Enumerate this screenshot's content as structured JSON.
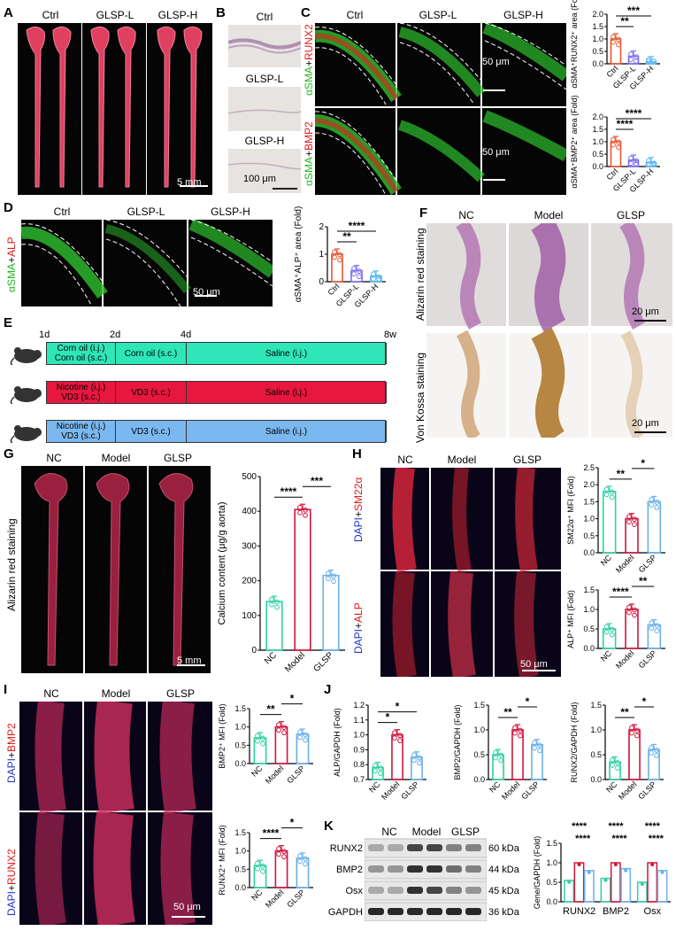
{
  "panels": {
    "A": "A",
    "B": "B",
    "C": "C",
    "D": "D",
    "E": "E",
    "F": "F",
    "G": "G",
    "H": "H",
    "I": "I",
    "J": "J",
    "K": "K"
  },
  "groups3": [
    "Ctrl",
    "GLSP-L",
    "GLSP-H"
  ],
  "groupsNC": [
    "NC",
    "Model",
    "GLSP"
  ],
  "scale": {
    "mm5": "5 mm",
    "um100": "100 μm",
    "um50": "50 μm",
    "um20": "20 μm"
  },
  "stains": {
    "c_top": [
      "αSMA",
      "+",
      "RUNX2"
    ],
    "c_bot": [
      "αSMA",
      "+",
      "BMP2"
    ],
    "d": [
      "αSMA",
      "+",
      "ALP"
    ],
    "h_top": [
      "DAPI",
      "+",
      "SM22α"
    ],
    "h_bot": [
      "DAPI",
      "+",
      "ALP"
    ],
    "i_top": [
      "DAPI",
      "+",
      "BMP2"
    ],
    "i_bot": [
      "DAPI",
      "+",
      "RUNX2"
    ],
    "alizarin": "Alizarin red staining",
    "vonkossa": "Von Kossa staining",
    "g_alizarin": "Alizarin red staining"
  },
  "timeline": {
    "days": [
      "1d",
      "2d",
      "4d",
      "8w"
    ],
    "rows": [
      {
        "seg1": "Corn oil (i.j.)\nCorn oil (s.c.)",
        "seg2": "Corn oil (s.c.)",
        "seg3": "Saline (i.j.)",
        "color": "#2ee6b8"
      },
      {
        "seg1": "Nicotine (i.j.)\nVD3 (s.c.)",
        "seg2": "VD3 (s.c.)",
        "seg3": "Saline (i.j.)",
        "color": "#e8173f"
      },
      {
        "seg1": "Nicotine (i.j.)\nVD3 (s.c.)",
        "seg2": "VD3 (s.c.)",
        "seg3": "Saline (i.j.)",
        "color": "#7bb8ef"
      }
    ]
  },
  "wb": {
    "labels": [
      "RUNX2",
      "BMP2",
      "Osx",
      "GAPDH"
    ],
    "kda": [
      "60 kDa",
      "44 kDa",
      "45 kDa",
      "36 kDa"
    ],
    "lanes": [
      "NC",
      "Model",
      "GLSP"
    ]
  },
  "colors": {
    "nc": "#2ed1a5",
    "model": "#d0153c",
    "glsp": "#6ab0ea",
    "ctrl": "#e8562f",
    "glspl": "#7a6ff0",
    "glsph": "#5ab8f0"
  },
  "chart_data": [
    {
      "id": "C1",
      "type": "bar",
      "ylabel": "αSMA⁺RUNX2⁺ area (Fold)",
      "categories": [
        "Ctrl",
        "GLSP-L",
        "GLSP-H"
      ],
      "values": [
        1.0,
        0.3,
        0.08
      ],
      "ylim": [
        0,
        2.0
      ],
      "yticks": [
        "0.0",
        "0.5",
        "1.0",
        "1.5",
        "2.0"
      ],
      "sig": [
        "**",
        "***"
      ]
    },
    {
      "id": "C2",
      "type": "bar",
      "ylabel": "αSMA⁺BMP2⁺ area (Fold)",
      "categories": [
        "Ctrl",
        "GLSP-L",
        "GLSP-H"
      ],
      "values": [
        1.0,
        0.25,
        0.15
      ],
      "ylim": [
        0,
        2.0
      ],
      "yticks": [
        "0.0",
        "0.5",
        "1.0",
        "1.5",
        "2.0"
      ],
      "sig": [
        "****",
        "****"
      ]
    },
    {
      "id": "D",
      "type": "bar",
      "ylabel": "αSMA⁺ALP⁺ area (Fold)",
      "categories": [
        "Ctrl",
        "GLSP-L",
        "GLSP-H"
      ],
      "values": [
        1.0,
        0.4,
        0.2
      ],
      "ylim": [
        0,
        2
      ],
      "yticks": [
        "0",
        "1",
        "2"
      ],
      "sig": [
        "**",
        "****"
      ]
    },
    {
      "id": "G",
      "type": "bar",
      "ylabel": "Calcium content (μg/g aorta)",
      "categories": [
        "NC",
        "Model",
        "GLSP"
      ],
      "values": [
        140,
        405,
        215
      ],
      "ylim": [
        0,
        500
      ],
      "yticks": [
        "0",
        "100",
        "200",
        "300",
        "400",
        "500"
      ],
      "sig": [
        "****",
        "***"
      ]
    },
    {
      "id": "H1",
      "type": "bar",
      "ylabel": "SM22α⁺ MFI (Fold)",
      "categories": [
        "NC",
        "Model",
        "GLSP"
      ],
      "values": [
        1.8,
        1.0,
        1.5
      ],
      "ylim": [
        0,
        2.5
      ],
      "yticks": [
        "0.0",
        "0.5",
        "1.0",
        "1.5",
        "2.0",
        "2.5"
      ],
      "sig": [
        "**",
        "*"
      ]
    },
    {
      "id": "H2",
      "type": "bar",
      "ylabel": "ALP⁺ MFI (Fold)",
      "categories": [
        "NC",
        "Model",
        "GLSP"
      ],
      "values": [
        0.5,
        1.0,
        0.6
      ],
      "ylim": [
        0,
        1.5
      ],
      "yticks": [
        "0.0",
        "0.5",
        "1.0",
        "1.5"
      ],
      "sig": [
        "****",
        "**"
      ]
    },
    {
      "id": "I1",
      "type": "bar",
      "ylabel": "BMP2⁺ MFI (Fold)",
      "categories": [
        "NC",
        "Model",
        "GLSP"
      ],
      "values": [
        0.7,
        1.0,
        0.8
      ],
      "ylim": [
        0,
        1.5
      ],
      "yticks": [
        "0.0",
        "0.5",
        "1.0",
        "1.5"
      ],
      "sig": [
        "**",
        "*"
      ]
    },
    {
      "id": "I2",
      "type": "bar",
      "ylabel": "RUNX2⁺ MFI (Fold)",
      "categories": [
        "NC",
        "Model",
        "GLSP"
      ],
      "values": [
        0.6,
        1.0,
        0.8
      ],
      "ylim": [
        0,
        1.5
      ],
      "yticks": [
        "0.0",
        "0.5",
        "1.0",
        "1.5"
      ],
      "sig": [
        "****",
        "*"
      ]
    },
    {
      "id": "J1",
      "type": "bar",
      "ylabel": "ALP/GAPDH (Fold)",
      "categories": [
        "NC",
        "Model",
        "GLSP"
      ],
      "values": [
        0.78,
        1.0,
        0.85
      ],
      "ylim": [
        0.7,
        1.2
      ],
      "yticks": [
        "0.7",
        "0.8",
        "0.9",
        "1.0",
        "1.1",
        "1.2"
      ],
      "sig": [
        "*",
        "*"
      ]
    },
    {
      "id": "J2",
      "type": "bar",
      "ylabel": "BMP2/GAPDH (Fold)",
      "categories": [
        "NC",
        "Model",
        "GLSP"
      ],
      "values": [
        0.5,
        1.0,
        0.7
      ],
      "ylim": [
        0,
        1.5
      ],
      "yticks": [
        "0.0",
        "0.5",
        "1.0",
        "1.5"
      ],
      "sig": [
        "**",
        "*"
      ]
    },
    {
      "id": "J3",
      "type": "bar",
      "ylabel": "RUNX2/GAPDH (Fold)",
      "categories": [
        "NC",
        "Model",
        "GLSP"
      ],
      "values": [
        0.35,
        1.0,
        0.6
      ],
      "ylim": [
        0,
        1.5
      ],
      "yticks": [
        "0.0",
        "0.5",
        "1.0",
        "1.5"
      ],
      "sig": [
        "**",
        "*"
      ]
    },
    {
      "id": "K",
      "type": "bar",
      "ylabel": "Gene/GAPDH (Fold)",
      "categories": [
        "RUNX2",
        "BMP2",
        "Osx"
      ],
      "series": [
        {
          "name": "NC",
          "values": [
            0.55,
            0.6,
            0.5
          ]
        },
        {
          "name": "Model",
          "values": [
            1.0,
            1.0,
            1.0
          ]
        },
        {
          "name": "GLSP",
          "values": [
            0.8,
            0.85,
            0.8
          ]
        }
      ],
      "ylim": [
        0,
        1.5
      ],
      "yticks": [
        "0.0",
        "0.5",
        "1.0",
        "1.5"
      ],
      "sig": [
        "****",
        "****",
        "****",
        "****",
        "****",
        "****"
      ]
    }
  ]
}
